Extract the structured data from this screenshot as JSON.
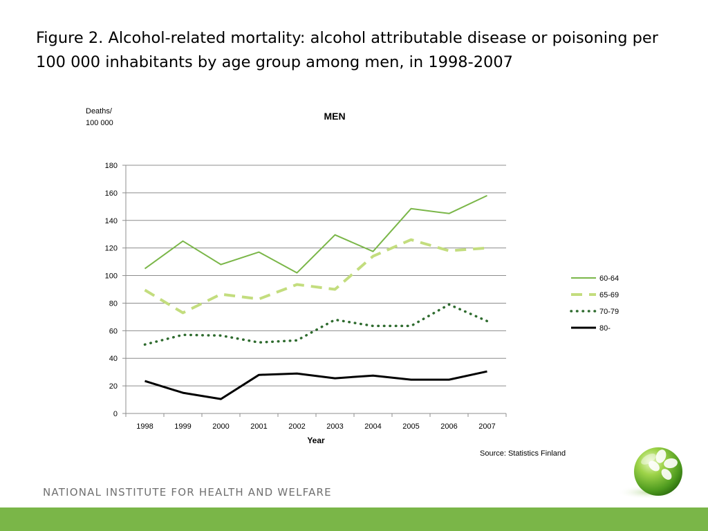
{
  "slide": {
    "title": "Figure 2. Alcohol-related mortality: alcohol attributable disease or poisoning per 100 000 inhabitants by age group among men, in 1998-2007",
    "source": "Source: Statistics Finland",
    "organization": "NATIONAL INSTITUTE FOR HEALTH AND WELFARE",
    "footer_color": "#7ab648"
  },
  "chart_data": {
    "type": "line",
    "title": "MEN",
    "ylabel_line1": "Deaths/",
    "ylabel_line2": "100 000",
    "xlabel": "Year",
    "ylim": [
      0,
      180
    ],
    "yticks": [
      0,
      20,
      40,
      60,
      80,
      100,
      120,
      140,
      160,
      180
    ],
    "x": [
      "1998",
      "1999",
      "2000",
      "2001",
      "2002",
      "2003",
      "2004",
      "2005",
      "2006",
      "2007"
    ],
    "grid": true,
    "legend_position": "right",
    "series": [
      {
        "name": "60-64",
        "color": "#7ab648",
        "style": "solid",
        "values": [
          105,
          125,
          108,
          117,
          102,
          129.5,
          117.5,
          148.5,
          145,
          158
        ]
      },
      {
        "name": "65-69",
        "color": "#c3dd7e",
        "style": "dashed",
        "values": [
          89.5,
          73,
          86.5,
          83,
          93.5,
          90,
          114,
          126,
          118,
          120
        ]
      },
      {
        "name": "70-79",
        "color": "#2e6b2e",
        "style": "dotted",
        "values": [
          50,
          57,
          56.5,
          51.5,
          53,
          68,
          63.5,
          63.5,
          79,
          67
        ]
      },
      {
        "name": "80-",
        "color": "#000000",
        "style": "solid",
        "values": [
          23.5,
          15,
          10.5,
          28,
          29,
          25.5,
          27.5,
          24.5,
          24.5,
          30.5
        ]
      }
    ]
  }
}
